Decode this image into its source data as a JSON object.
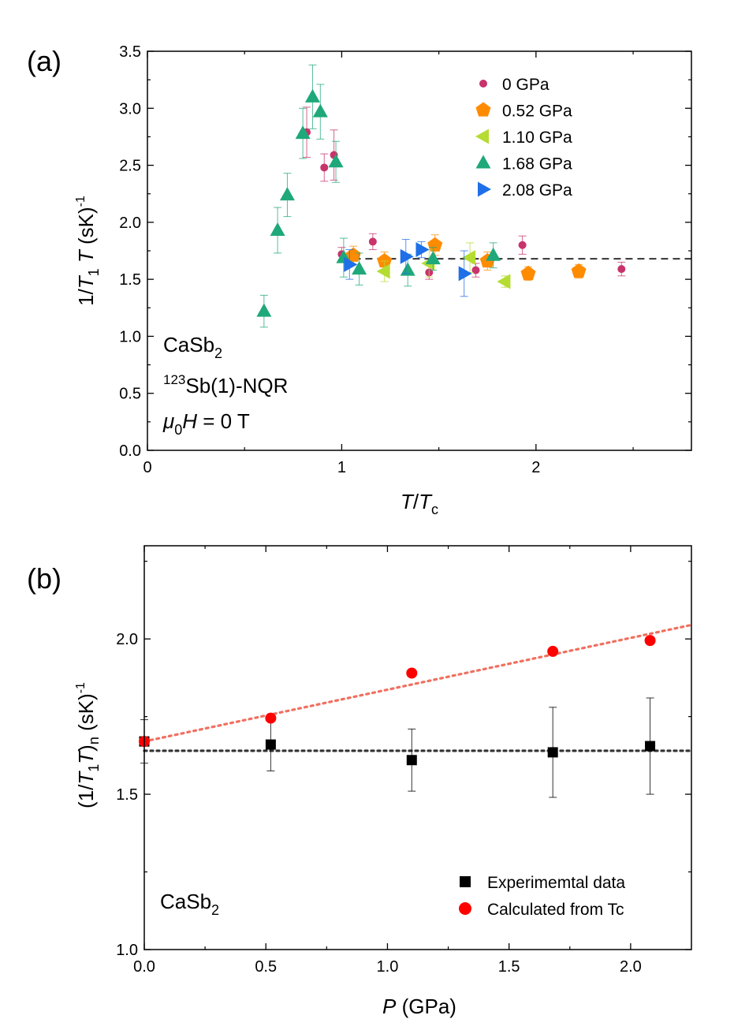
{
  "chart_data": [
    {
      "type": "scatter",
      "panel_label": "(a)",
      "xlabel": "T/Tc",
      "ylabel": "1/T1T (sK)^-1",
      "xlim": [
        0,
        2.8
      ],
      "ylim": [
        0,
        3.5
      ],
      "xticks": [
        0,
        1,
        2
      ],
      "xtick_labels": [
        "0",
        "1",
        "2"
      ],
      "yticks": [
        0,
        0.5,
        1.0,
        1.5,
        2.0,
        2.5,
        3.0,
        3.5
      ],
      "ytick_labels": [
        "0.0",
        "0.5",
        "1.0",
        "1.5",
        "2.0",
        "2.5",
        "3.0",
        "3.5"
      ],
      "legend_position": "top-right",
      "annotations": {
        "compound": "CaSb",
        "compound_sub": "2",
        "isotope_sup": "123",
        "nucleus_method": "Sb(1)-NQR",
        "field_mu": "μ",
        "field_mu_sub": "0",
        "field_rest": " = 0 T"
      },
      "reference_line": {
        "y": 1.68,
        "x_from": 1.0,
        "x_to": 2.8,
        "style": "dashed",
        "color": "#333333"
      },
      "series": [
        {
          "name": "0 GPa",
          "marker": "circle",
          "color": "#c8336b",
          "x": [
            0.82,
            0.91,
            0.96,
            1.0,
            1.16,
            1.45,
            1.69,
            1.93,
            2.44
          ],
          "y": [
            2.79,
            2.48,
            2.59,
            1.72,
            1.83,
            1.56,
            1.58,
            1.8,
            1.59
          ],
          "err": [
            0.22,
            0.12,
            0.22,
            0.06,
            0.07,
            0.06,
            0.06,
            0.08,
            0.06
          ]
        },
        {
          "name": "0.52 GPa",
          "marker": "pentagon",
          "color": "#ff8c00",
          "x": [
            1.06,
            1.22,
            1.48,
            1.75,
            1.96,
            2.22
          ],
          "y": [
            1.71,
            1.66,
            1.8,
            1.66,
            1.55,
            1.57
          ],
          "err": [
            0.08,
            0.08,
            0.09,
            0.08,
            0.06,
            0.06
          ]
        },
        {
          "name": "1.10 GPa",
          "marker": "triangle-left",
          "color": "#b5dc32",
          "x": [
            1.22,
            1.45,
            1.66,
            1.84
          ],
          "y": [
            1.57,
            1.64,
            1.69,
            1.48
          ],
          "err": [
            0.09,
            0.12,
            0.13,
            0.05
          ]
        },
        {
          "name": "1.68 GPa",
          "marker": "triangle-up",
          "color": "#1fa87a",
          "x": [
            0.6,
            0.67,
            0.72,
            0.8,
            0.85,
            0.89,
            0.97,
            1.01,
            1.09,
            1.34,
            1.47,
            1.78
          ],
          "y": [
            1.22,
            1.93,
            2.24,
            2.78,
            3.1,
            2.97,
            2.53,
            1.69,
            1.59,
            1.58,
            1.68,
            1.71
          ],
          "err": [
            0.14,
            0.2,
            0.19,
            0.22,
            0.28,
            0.24,
            0.18,
            0.17,
            0.14,
            0.14,
            0.1,
            0.11
          ]
        },
        {
          "name": "2.08 GPa",
          "marker": "triangle-right",
          "color": "#1f6fe8",
          "x": [
            1.04,
            1.33,
            1.41,
            1.63
          ],
          "y": [
            1.63,
            1.7,
            1.76,
            1.55
          ],
          "err": [
            0.13,
            0.15,
            0.07,
            0.2
          ]
        }
      ]
    },
    {
      "type": "scatter",
      "panel_label": "(b)",
      "xlabel": "P (GPa)",
      "ylabel": "(1/T1T)n (sK)^-1",
      "xlim": [
        0,
        2.25
      ],
      "ylim": [
        1.0,
        2.3
      ],
      "xticks": [
        0,
        0.5,
        1.0,
        1.5,
        2.0
      ],
      "xtick_labels": [
        "0.0",
        "0.5",
        "1.0",
        "1.5",
        "2.0"
      ],
      "yticks": [
        1.0,
        1.5,
        2.0
      ],
      "ytick_labels": [
        "1.0",
        "1.5",
        "2.0"
      ],
      "legend_position": "bottom-right",
      "annotations": {
        "compound": "CaSb",
        "compound_sub": "2"
      },
      "series": [
        {
          "name": "Experimemtal data",
          "marker": "square",
          "color": "#000000",
          "x": [
            0.0,
            0.52,
            1.1,
            1.68,
            2.08
          ],
          "y": [
            1.67,
            1.66,
            1.61,
            1.635,
            1.655
          ],
          "err": [
            0.07,
            0.085,
            0.1,
            0.145,
            0.155
          ]
        },
        {
          "name": "Calculated from Tc",
          "marker": "circle",
          "color": "#ff0000",
          "x": [
            0.0,
            0.52,
            1.1,
            1.68,
            2.08
          ],
          "y": [
            1.67,
            1.745,
            1.89,
            1.96,
            1.995
          ],
          "err": []
        }
      ],
      "fit_lines": [
        {
          "name": "linear fit calc",
          "color": "#f07060",
          "style": "dotted",
          "x": [
            0,
            2.25
          ],
          "y": [
            1.67,
            2.045
          ]
        },
        {
          "name": "mean exp",
          "color": "#333333",
          "style": "dotted",
          "x": [
            0,
            2.25
          ],
          "y": [
            1.64,
            1.64
          ]
        }
      ]
    }
  ]
}
